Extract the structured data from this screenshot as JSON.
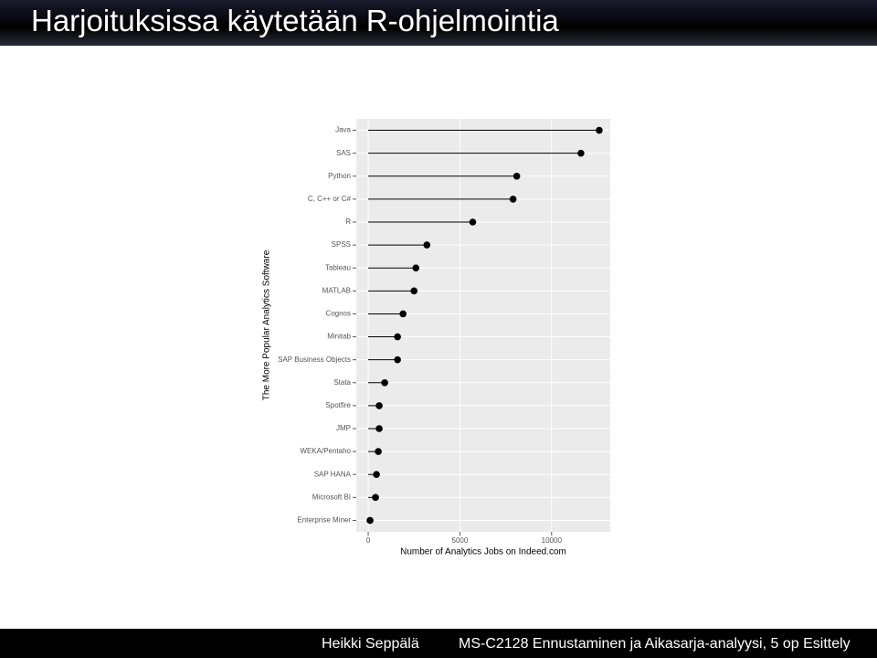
{
  "header": {
    "title": "Harjoituksissa käytetään R-ohjelmointia"
  },
  "chart_data": {
    "type": "lollipop",
    "orientation": "horizontal",
    "ylabel": "The More Popular Analytics Software",
    "xlabel": "Number of Analytics Jobs on Indeed.com",
    "categories": [
      "Java",
      "SAS",
      "Python",
      "C, C++ or C#",
      "R",
      "SPSS",
      "Tableau",
      "MATLAB",
      "Cognos",
      "Minitab",
      "SAP Business Objects",
      "Stata",
      "Spotfire",
      "JMP",
      "WEKA/Pentaho",
      "SAP HANA",
      "Microsoft BI",
      "Enterprise Miner"
    ],
    "values": [
      12600,
      11600,
      8100,
      7900,
      5700,
      3200,
      2600,
      2500,
      1900,
      1600,
      1600,
      900,
      600,
      600,
      550,
      450,
      400,
      100
    ],
    "color": "#000000",
    "xlim": [
      -650,
      13200
    ],
    "xticks": [
      0,
      5000,
      10000
    ],
    "grid": true
  },
  "footer": {
    "author": "Heikki Seppälä",
    "course": "MS-C2128 Ennustaminen ja Aikasarja-analyysi, 5 op Esittely"
  }
}
